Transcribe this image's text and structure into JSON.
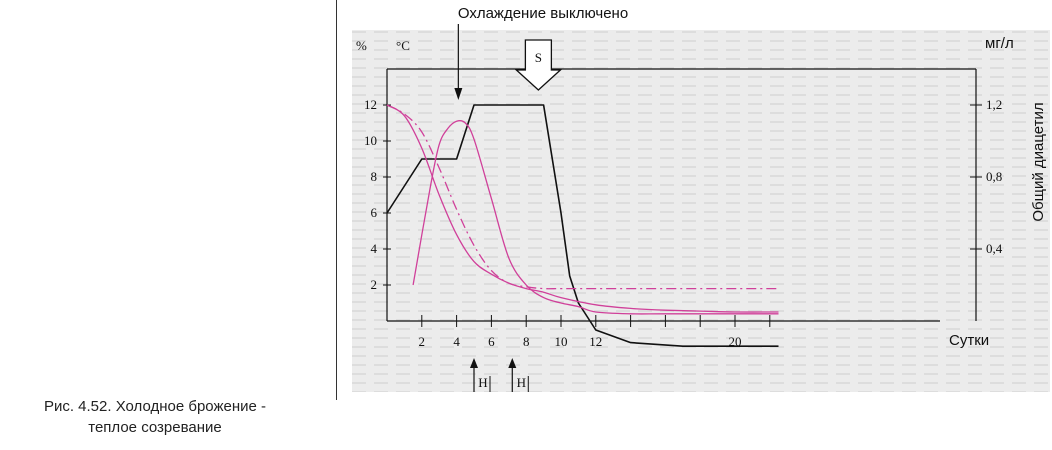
{
  "caption": {
    "line1": "Рис. 4.52. Холодное брожение -",
    "line2": "теплое созревание"
  },
  "chart_data": {
    "type": "line",
    "title": "",
    "annotation_top": "Охлаждение  выключено",
    "annotation_s": "S",
    "annotation_h": "Н",
    "xlabel": "Сутки",
    "ylabel_left_1": "%",
    "ylabel_left_2": "°С",
    "ylabel_right_unit": "мг/л",
    "ylabel_right": "Общий  диацетил",
    "xlim": [
      0,
      23
    ],
    "ylim_left": [
      0,
      14
    ],
    "ylim_right": [
      0,
      1.4
    ],
    "x_ticks": [
      2,
      4,
      6,
      8,
      10,
      12,
      20
    ],
    "x_tick_marks": [
      2,
      4,
      6,
      8,
      10,
      12,
      14,
      16,
      18,
      20,
      22
    ],
    "y_ticks_left": [
      2,
      4,
      6,
      8,
      10,
      12
    ],
    "y_ticks_right": [
      0.4,
      0.8,
      1.2
    ],
    "grid": false,
    "colors": {
      "temperature": "#111111",
      "magenta": "#d0409a"
    },
    "annotations_x": {
      "cooling_off": 4.1,
      "s_marker": 8.7,
      "h1": 5.0,
      "h2": 7.2
    },
    "series": [
      {
        "key": "temperature",
        "x": [
          0,
          2,
          4,
          5,
          9,
          10,
          10.5,
          11,
          12,
          14,
          17,
          20,
          22.5
        ],
        "y": [
          6,
          9,
          9,
          12,
          12,
          6,
          2.5,
          1.0,
          -0.5,
          -1.2,
          -1.4,
          -1.4,
          -1.4
        ]
      },
      {
        "key": "extract",
        "x": [
          0,
          1,
          2,
          3,
          4,
          5,
          6,
          7,
          8,
          9,
          10,
          12,
          14,
          16,
          18,
          20,
          22.5
        ],
        "y": [
          12,
          11.4,
          9.6,
          7.0,
          4.8,
          3.3,
          2.6,
          2.1,
          1.8,
          1.6,
          1.3,
          0.9,
          0.7,
          0.6,
          0.55,
          0.5,
          0.5
        ]
      },
      {
        "key": "diacetyl",
        "x": [
          1.5,
          2.5,
          3,
          3.5,
          4,
          4.5,
          5,
          6,
          7,
          8,
          9,
          10,
          11,
          12,
          14,
          16,
          20,
          22.5
        ],
        "y": [
          0.2,
          0.75,
          0.98,
          1.07,
          1.11,
          1.1,
          1.01,
          0.68,
          0.35,
          0.2,
          0.13,
          0.1,
          0.08,
          0.05,
          0.04,
          0.04,
          0.04,
          0.04
        ]
      },
      {
        "key": "ph_dashdot",
        "x": [
          0,
          1,
          2,
          3,
          4,
          5,
          6,
          7,
          8,
          9,
          10,
          12,
          20,
          22.5
        ],
        "y": [
          12,
          11.5,
          10.5,
          8.5,
          6.2,
          4.2,
          2.8,
          2.1,
          1.9,
          1.8,
          1.8,
          1.8,
          1.8,
          1.8
        ]
      }
    ]
  }
}
